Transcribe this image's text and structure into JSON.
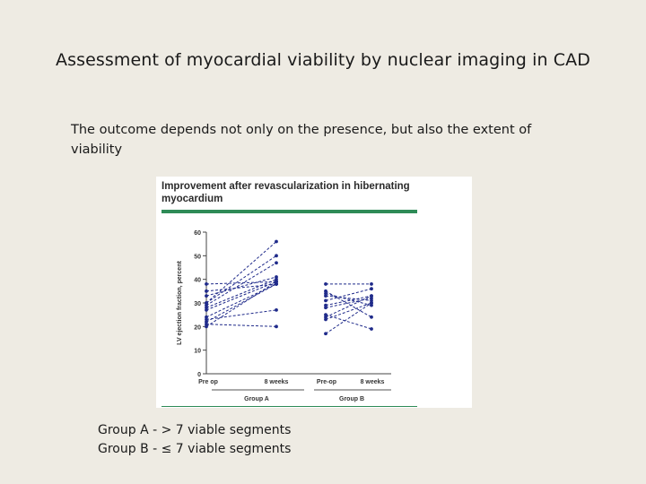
{
  "slide": {
    "title": "Assessment of myocardial viability by nuclear imaging in CAD",
    "subtitle": "The outcome depends not only on the presence, but also the extent of viability",
    "notes": [
      "Group A - > 7 viable segments",
      "Group B - ≤ 7 viable segments"
    ]
  },
  "colors": {
    "background": "#eeebe3",
    "series": "#1f2a8a",
    "rule": "#2e8b57"
  },
  "chart_data": {
    "type": "line",
    "title": "Improvement after revascularization in hibernating myocardium",
    "ylabel": "LV ejection fraction, percent",
    "ylim": [
      0,
      60
    ],
    "yticks": [
      0,
      10,
      20,
      30,
      40,
      50,
      60
    ],
    "grid": false,
    "groups": [
      {
        "name": "Group A",
        "categories": [
          "Pre op",
          "8 weeks"
        ],
        "pairs": [
          [
            38,
            39
          ],
          [
            35,
            38
          ],
          [
            33,
            41
          ],
          [
            30,
            56
          ],
          [
            30,
            50
          ],
          [
            29,
            47
          ],
          [
            28,
            40
          ],
          [
            27,
            39
          ],
          [
            24,
            38
          ],
          [
            23,
            27
          ],
          [
            22,
            38
          ],
          [
            21,
            20
          ],
          [
            20,
            39
          ]
        ]
      },
      {
        "name": "Group B",
        "categories": [
          "Pre-op",
          "8 weeks"
        ],
        "pairs": [
          [
            38,
            38
          ],
          [
            35,
            24
          ],
          [
            34,
            29
          ],
          [
            33,
            31
          ],
          [
            31,
            36
          ],
          [
            29,
            33
          ],
          [
            28,
            32
          ],
          [
            25,
            19
          ],
          [
            24,
            33
          ],
          [
            23,
            30
          ],
          [
            17,
            30
          ]
        ]
      }
    ]
  }
}
